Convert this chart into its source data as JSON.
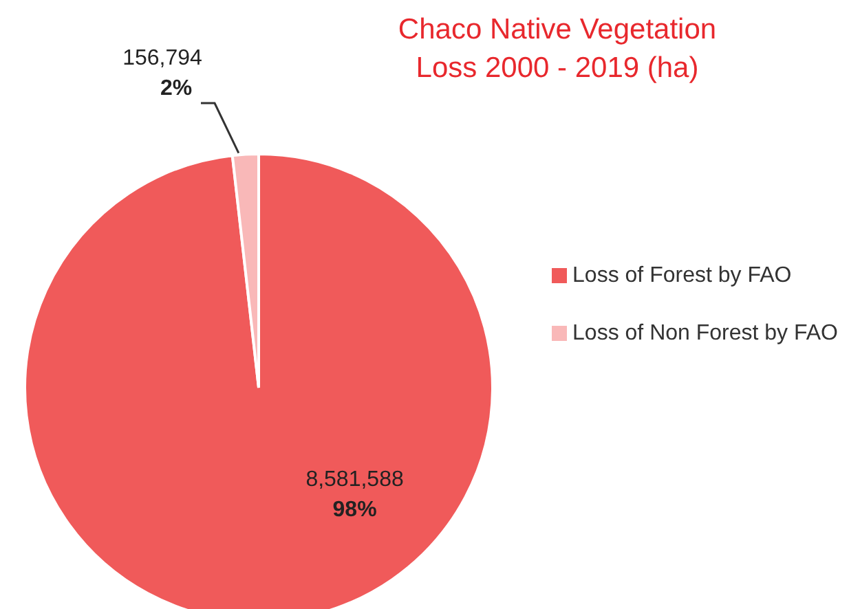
{
  "chart_data": {
    "type": "pie",
    "title": "Chaco Native Vegetation\nLoss 2000 - 2019 (ha)",
    "categories": [
      "Loss of Forest by FAO",
      "Loss of Non Forest by FAO"
    ],
    "values": [
      8581588,
      156794
    ],
    "colors": [
      "#f05a5a",
      "#f9b8b8"
    ],
    "value_labels": [
      "8,581,588\n98%",
      "156,794\n2%"
    ],
    "legend": "right"
  }
}
